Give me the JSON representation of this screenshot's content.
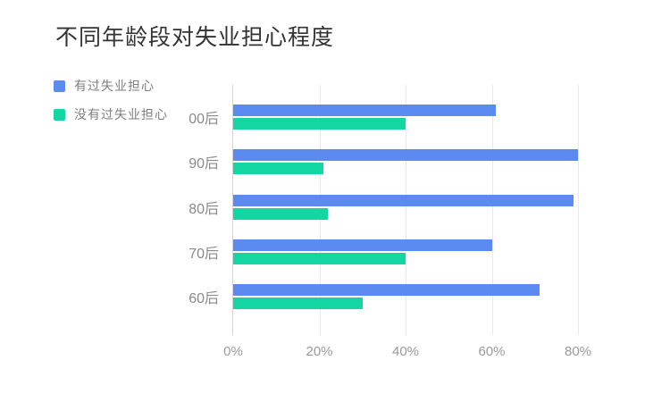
{
  "title": "不同年龄段对失业担心程度",
  "legend": [
    {
      "label": "有过失业担心",
      "color": "#5b8bf0"
    },
    {
      "label": "没有过失业担心",
      "color": "#14d6a2"
    }
  ],
  "chart_data": {
    "type": "bar",
    "orientation": "horizontal",
    "title": "不同年龄段对失业担心程度",
    "categories": [
      "00后",
      "90后",
      "80后",
      "70后",
      "60后"
    ],
    "series": [
      {
        "name": "有过失业担心",
        "color": "#5b8bf0",
        "values": [
          61,
          80,
          79,
          60,
          71
        ]
      },
      {
        "name": "没有过失业担心",
        "color": "#14d6a2",
        "values": [
          40,
          21,
          22,
          40,
          30
        ]
      }
    ],
    "unit": "%",
    "x_ticks": [
      "0%",
      "20%",
      "40%",
      "60%",
      "80%"
    ],
    "xlim": [
      0,
      80
    ],
    "xlabel": "",
    "ylabel": "",
    "grid": true,
    "legend_position": "top-left",
    "colors": {
      "title_text": "#333333",
      "category_text": "#8a8a8a",
      "tick_text": "#9a9a9a",
      "legend_text": "#7d7d7d",
      "gridline": "#e9e9e9",
      "axis_line": "#d4d4d4",
      "background": "#ffffff"
    }
  }
}
